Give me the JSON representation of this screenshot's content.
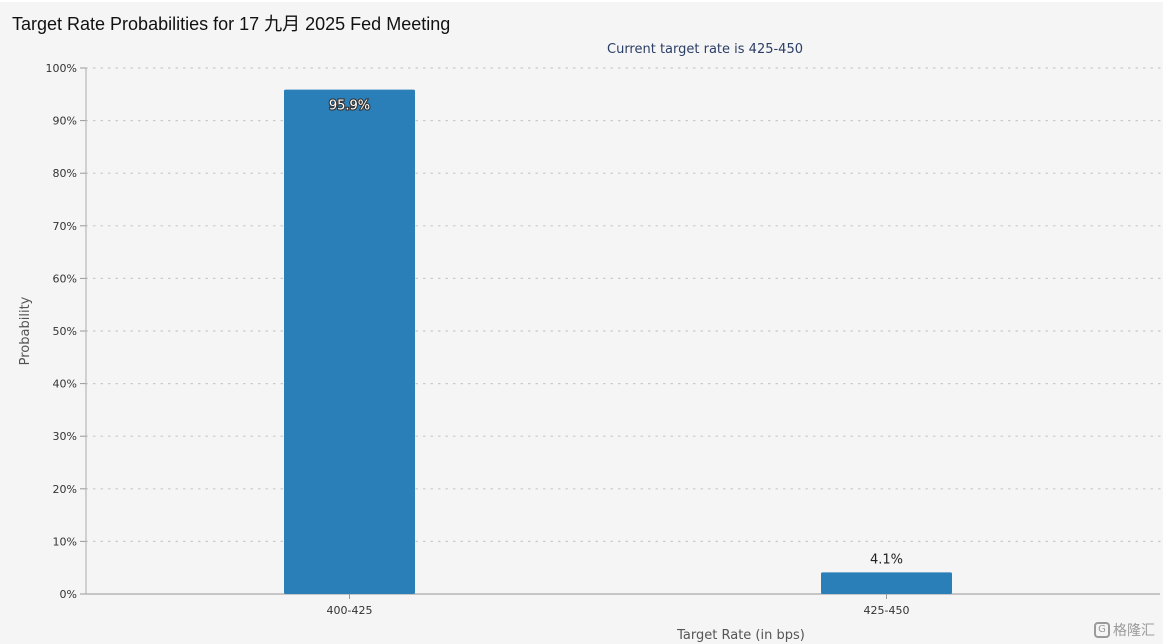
{
  "chart_data": {
    "type": "bar",
    "title": "Target Rate Probabilities for 17 九月 2025 Fed Meeting",
    "subtitle": "Current target rate is 425-450",
    "xlabel": "Target Rate (in bps)",
    "ylabel": "Probability",
    "categories": [
      "400-425",
      "425-450"
    ],
    "values": [
      95.9,
      4.1
    ],
    "value_labels": [
      "95.9%",
      "4.1%"
    ],
    "ylim": [
      0,
      100
    ],
    "yticks": [
      "0%",
      "10%",
      "20%",
      "30%",
      "40%",
      "50%",
      "60%",
      "70%",
      "80%",
      "90%",
      "100%"
    ],
    "grid": "horizontal dotted",
    "bar_color": "#2b7fb8"
  },
  "watermark": {
    "icon": "g-logo-icon",
    "text": "格隆汇"
  }
}
